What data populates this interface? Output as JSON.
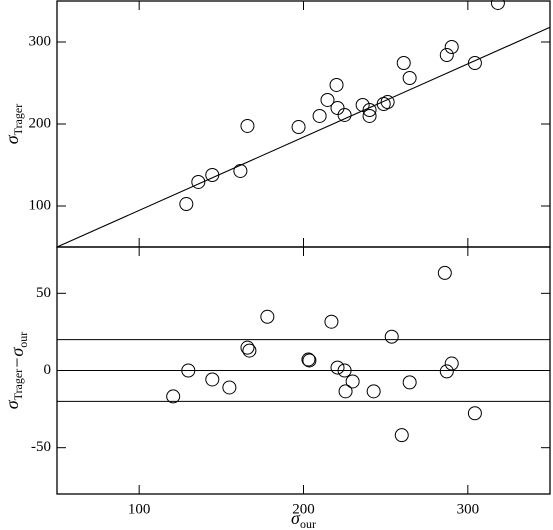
{
  "chart_data": [
    {
      "type": "scatter",
      "ylabel": {
        "main": "σ",
        "sub": "Trager"
      },
      "x": [
        128.7,
        136.0,
        144.5,
        161.6,
        165.9,
        197.0,
        209.8,
        214.6,
        220.1,
        220.7,
        225.0,
        236.0,
        240.2,
        240.2,
        248.8,
        251.2,
        261.0,
        264.6,
        287.2,
        290.2,
        304.3,
        318.3
      ],
      "y": [
        102.4,
        129.3,
        137.8,
        142.7,
        197.6,
        196.3,
        209.8,
        229.3,
        247.6,
        219.5,
        211.0,
        223.2,
        217.0,
        209.8,
        224.4,
        226.8,
        274.4,
        256.1,
        284.1,
        293.9,
        274.4,
        347.6
      ],
      "fit_line": {
        "x": [
          50,
          350
        ],
        "y": [
          50,
          318
        ]
      },
      "xlim": [
        50,
        350
      ],
      "ylim": [
        50,
        350
      ],
      "xticks": [
        100,
        200,
        300
      ],
      "yticks": [
        100,
        200,
        300
      ],
      "show_xtick_labels": false,
      "color": "#000000"
    },
    {
      "type": "scatter",
      "ylabel": [
        {
          "main": "σ",
          "sub": "Trager"
        },
        {
          "main": "−σ",
          "sub": "our"
        }
      ],
      "xlabel": {
        "main": "σ",
        "sub": "our"
      },
      "x": [
        120.7,
        129.9,
        144.5,
        154.9,
        165.9,
        167.1,
        178.0,
        203.0,
        203.6,
        217.0,
        220.7,
        225.0,
        225.6,
        229.9,
        242.7,
        253.7,
        259.8,
        264.6,
        286.0,
        287.2,
        290.2,
        304.3
      ],
      "y": [
        -16.8,
        0,
        -5.8,
        -11.0,
        14.8,
        12.9,
        34.8,
        7.1,
        6.5,
        31.6,
        1.9,
        0,
        -13.5,
        -7.1,
        -13.5,
        21.9,
        -41.9,
        -7.7,
        63.2,
        -0.6,
        4.5,
        -27.7
      ],
      "hlines": [
        -20,
        0,
        20
      ],
      "xlim": [
        50,
        350
      ],
      "ylim": [
        -80,
        80
      ],
      "xticks": [
        100,
        200,
        300
      ],
      "yticks": [
        -50,
        0,
        50
      ],
      "show_xtick_labels": true,
      "color": "#000000"
    }
  ]
}
